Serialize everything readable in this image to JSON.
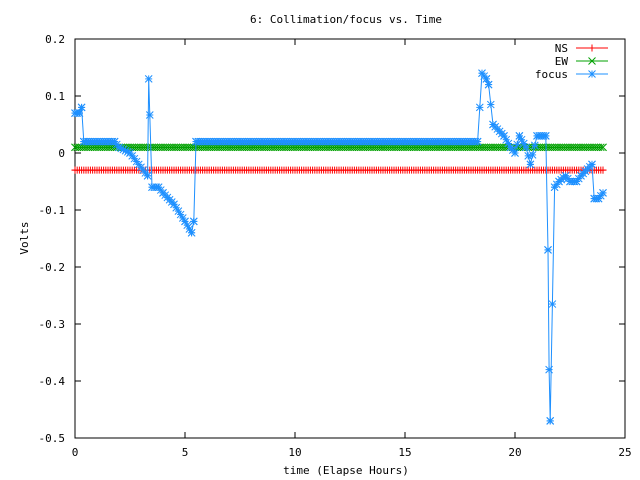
{
  "chart_data": {
    "type": "line",
    "title": "6: Collimation/focus vs. Time",
    "xlabel": "time (Elapse Hours)",
    "ylabel": "Volts",
    "xlim": [
      0,
      25
    ],
    "ylim": [
      -0.5,
      0.2
    ],
    "x_ticks": [
      0,
      5,
      10,
      15,
      20,
      25
    ],
    "x_tick_labels": [
      "0",
      "5",
      "10",
      "15",
      "20",
      "25"
    ],
    "y_ticks": [
      0.2,
      0.1,
      0,
      -0.1,
      -0.2,
      -0.3,
      -0.4,
      -0.5
    ],
    "y_tick_labels": [
      "0.2",
      "0.1",
      "0",
      "-0.1",
      "-0.2",
      "-0.3",
      "-0.4",
      "-0.5"
    ],
    "grid": false,
    "legend_position": "top-right",
    "series": [
      {
        "name": "NS",
        "color": "#ff0000",
        "marker": "plus",
        "x": [
          0.0,
          24.0
        ],
        "y": [
          -0.03,
          -0.03
        ],
        "sample_step": 0.1
      },
      {
        "name": "EW",
        "color": "#00a000",
        "marker": "cross",
        "x": [
          0.0,
          24.0
        ],
        "y": [
          0.01,
          0.01
        ],
        "sample_step": 0.1
      },
      {
        "name": "focus",
        "color": "#1e90ff",
        "marker": "star",
        "x": [
          0.0,
          0.2,
          0.3,
          0.4,
          1.8,
          2.0,
          2.5,
          3.3,
          3.35,
          3.5,
          3.8,
          4.0,
          4.5,
          5.0,
          5.3,
          5.4,
          5.5,
          18.3,
          18.5,
          18.7,
          18.8,
          19.0,
          19.5,
          19.8,
          20.0,
          20.2,
          20.5,
          20.7,
          21.0,
          21.2,
          21.4,
          21.5,
          21.55,
          21.6,
          21.8,
          22.0,
          22.3,
          22.5,
          22.8,
          23.0,
          23.5,
          23.6,
          23.8,
          24.0
        ],
        "y": [
          0.07,
          0.07,
          0.08,
          0.02,
          0.02,
          0.01,
          0.0,
          -0.04,
          0.13,
          -0.06,
          -0.06,
          -0.07,
          -0.09,
          -0.12,
          -0.14,
          -0.12,
          0.02,
          0.02,
          0.14,
          0.13,
          0.12,
          0.05,
          0.03,
          0.01,
          0.0,
          0.03,
          0.01,
          -0.02,
          0.03,
          0.03,
          0.03,
          -0.17,
          -0.38,
          -0.47,
          -0.06,
          -0.05,
          -0.04,
          -0.05,
          -0.05,
          -0.04,
          -0.02,
          -0.08,
          -0.08,
          -0.07
        ],
        "sample_step": 0.1
      }
    ]
  }
}
